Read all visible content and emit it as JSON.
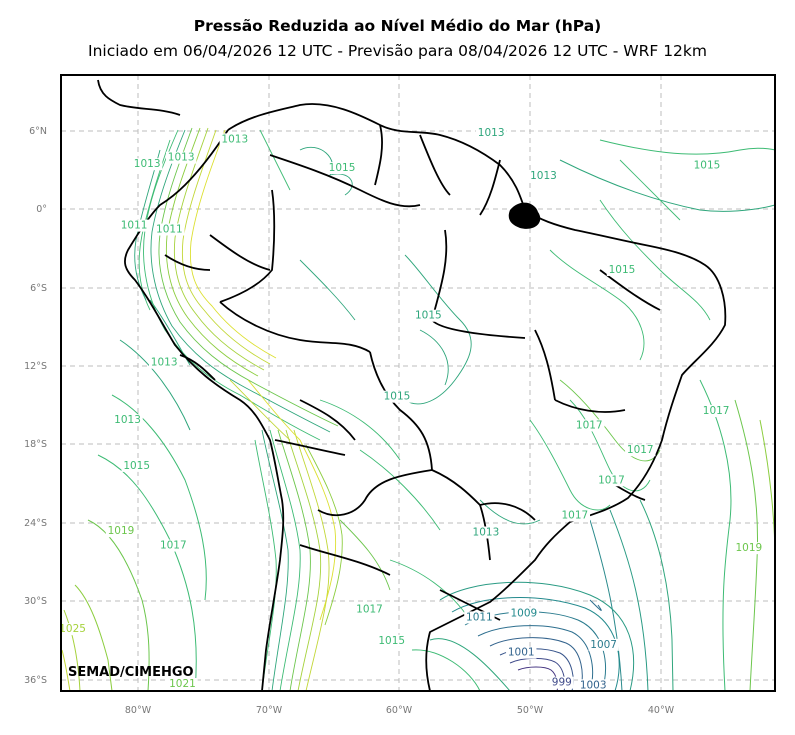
{
  "title": "Pressão Reduzida ao Nível Médio do Mar (hPa)",
  "subtitle": "Iniciado em 06/04/2026 12 UTC - Previsão para 08/04/2026 12 UTC - WRF 12km",
  "watermark": "SEMAD/CIMEHGO",
  "lat_ticks": [
    "6°N",
    "0°",
    "6°S",
    "12°S",
    "18°S",
    "24°S",
    "30°S",
    "36°S"
  ],
  "lon_ticks": [
    "80°W",
    "70°W",
    "60°W",
    "50°W",
    "40°W"
  ],
  "contour_labels": [
    {
      "text": "1013",
      "lon": -72.6,
      "lat": 5.1,
      "color": "#3dbb74"
    },
    {
      "text": "1013",
      "lon": -79.3,
      "lat": 3.2,
      "color": "#3dbb74"
    },
    {
      "text": "1013",
      "lon": -76.7,
      "lat": 3.7,
      "color": "#3dbb74"
    },
    {
      "text": "1015",
      "lon": -64.4,
      "lat": 2.9,
      "color": "#3dbb74"
    },
    {
      "text": "1013",
      "lon": -53.0,
      "lat": 5.6,
      "color": "#2fa67c"
    },
    {
      "text": "1013",
      "lon": -49.0,
      "lat": 2.3,
      "color": "#2fa67c"
    },
    {
      "text": "1015",
      "lon": -36.5,
      "lat": 3.1,
      "color": "#3dbb74"
    },
    {
      "text": "1011",
      "lon": -80.3,
      "lat": -1.5,
      "color": "#3dbb74"
    },
    {
      "text": "1011",
      "lon": -77.6,
      "lat": -1.8,
      "color": "#3dbb74"
    },
    {
      "text": "1015",
      "lon": -43.0,
      "lat": -4.9,
      "color": "#3dbb74"
    },
    {
      "text": "1015",
      "lon": -57.8,
      "lat": -8.4,
      "color": "#2fa67c"
    },
    {
      "text": "1013",
      "lon": -78.0,
      "lat": -12.0,
      "color": "#3dbb74"
    },
    {
      "text": "1015",
      "lon": -60.2,
      "lat": -14.6,
      "color": "#2fa67c"
    },
    {
      "text": "1013",
      "lon": -80.8,
      "lat": -16.4,
      "color": "#3dbb74"
    },
    {
      "text": "1017",
      "lon": -35.8,
      "lat": -15.7,
      "color": "#3dbb74"
    },
    {
      "text": "1017",
      "lon": -45.5,
      "lat": -16.8,
      "color": "#3dbb74"
    },
    {
      "text": "1017",
      "lon": -41.6,
      "lat": -18.7,
      "color": "#3dbb74"
    },
    {
      "text": "1015",
      "lon": -80.1,
      "lat": -19.9,
      "color": "#3dbb74"
    },
    {
      "text": "1017",
      "lon": -43.8,
      "lat": -21.0,
      "color": "#3dbb74"
    },
    {
      "text": "1017",
      "lon": -46.6,
      "lat": -23.7,
      "color": "#3dbb74"
    },
    {
      "text": "1013",
      "lon": -53.4,
      "lat": -25.0,
      "color": "#2fa67c"
    },
    {
      "text": "1019",
      "lon": -81.3,
      "lat": -24.9,
      "color": "#6cc64c"
    },
    {
      "text": "1017",
      "lon": -77.3,
      "lat": -26.0,
      "color": "#3dbb74"
    },
    {
      "text": "1019",
      "lon": -33.3,
      "lat": -26.2,
      "color": "#6cc64c"
    },
    {
      "text": "1017",
      "lon": -62.3,
      "lat": -30.9,
      "color": "#3dbb74"
    },
    {
      "text": "1009",
      "lon": -50.5,
      "lat": -31.2,
      "color": "#238a8d"
    },
    {
      "text": "1011",
      "lon": -53.9,
      "lat": -31.5,
      "color": "#2a7b8e"
    },
    {
      "text": "1025",
      "lon": -85.0,
      "lat": -32.4,
      "color": "#a6d23c"
    },
    {
      "text": "1015",
      "lon": -60.6,
      "lat": -33.3,
      "color": "#3dbb74"
    },
    {
      "text": "1007",
      "lon": -44.4,
      "lat": -33.6,
      "color": "#2c7b8e"
    },
    {
      "text": "1001",
      "lon": -50.7,
      "lat": -34.2,
      "color": "#33638d"
    },
    {
      "text": "1021",
      "lon": -76.6,
      "lat": -36.6,
      "color": "#6cc64c"
    },
    {
      "text": "999",
      "lon": -47.6,
      "lat": -36.5,
      "color": "#3f4a8a"
    },
    {
      "text": "1003",
      "lon": -45.2,
      "lat": -36.7,
      "color": "#33638d"
    }
  ]
}
